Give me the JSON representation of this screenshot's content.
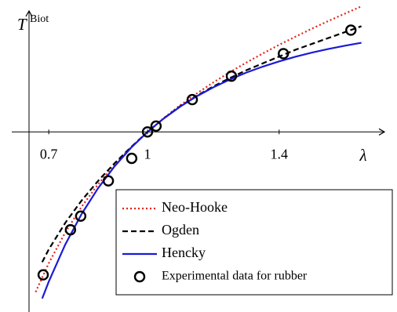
{
  "chart_data": {
    "type": "line",
    "ylabel": "T",
    "ylabel_superscript": "Biot",
    "xlabel": "λ",
    "xlim": [
      0.64,
      1.72
    ],
    "ylim": [
      -1.84,
      1.3
    ],
    "xticks": [
      0.7,
      1,
      1.4
    ],
    "legend": "south east",
    "series": [
      {
        "name": "Neo-Hooke",
        "color": "#e0241b",
        "style": "dotted",
        "x": [
          0.66,
          0.7,
          0.75,
          0.8,
          0.85,
          0.9,
          0.95,
          1,
          1.05,
          1.1,
          1.15,
          1.2,
          1.25,
          1.3,
          1.35,
          1.4,
          1.45,
          1.5,
          1.55,
          1.6,
          1.65
        ],
        "values": [
          -1.636,
          -1.341,
          -1.028,
          -0.763,
          -0.534,
          -0.335,
          -0.158,
          0,
          0.143,
          0.274,
          0.394,
          0.506,
          0.61,
          0.708,
          0.801,
          0.89,
          0.974,
          1.056,
          1.134,
          1.209,
          1.283
        ]
      },
      {
        "name": "Ogden",
        "color": "#000000",
        "style": "dashed",
        "x": [
          0.68,
          0.7,
          0.75,
          0.8,
          0.85,
          0.9,
          0.95,
          1,
          1.05,
          1.1,
          1.15,
          1.2,
          1.25,
          1.3,
          1.35,
          1.4,
          1.45,
          1.5,
          1.55,
          1.6,
          1.65
        ],
        "values": [
          -1.33,
          -1.2,
          -0.93,
          -0.7,
          -0.5,
          -0.32,
          -0.155,
          0,
          0.14,
          0.265,
          0.37,
          0.465,
          0.55,
          0.63,
          0.7,
          0.77,
          0.84,
          0.9,
          0.96,
          1.02,
          1.08
        ]
      },
      {
        "name": "Hencky",
        "color": "#1a1ad6",
        "style": "solid",
        "x": [
          0.68,
          0.7,
          0.75,
          0.8,
          0.85,
          0.9,
          0.95,
          1,
          1.05,
          1.1,
          1.15,
          1.2,
          1.25,
          1.3,
          1.35,
          1.4,
          1.45,
          1.5,
          1.55,
          1.6,
          1.65
        ],
        "values": [
          -1.702,
          -1.529,
          -1.151,
          -0.837,
          -0.574,
          -0.351,
          -0.162,
          0,
          0.139,
          0.26,
          0.365,
          0.456,
          0.535,
          0.606,
          0.667,
          0.721,
          0.769,
          0.811,
          0.848,
          0.881,
          0.911
        ]
      },
      {
        "name": "Experimental data for rubber",
        "color": "#000000",
        "style": "markers",
        "x": [
          0.683,
          0.766,
          0.797,
          0.881,
          0.952,
          1.0,
          1.026,
          1.136,
          1.255,
          1.413,
          1.618
        ],
        "values": [
          -1.46,
          -1.0,
          -0.86,
          -0.5,
          -0.27,
          0,
          0.06,
          0.33,
          0.57,
          0.8,
          1.04
        ]
      }
    ]
  }
}
